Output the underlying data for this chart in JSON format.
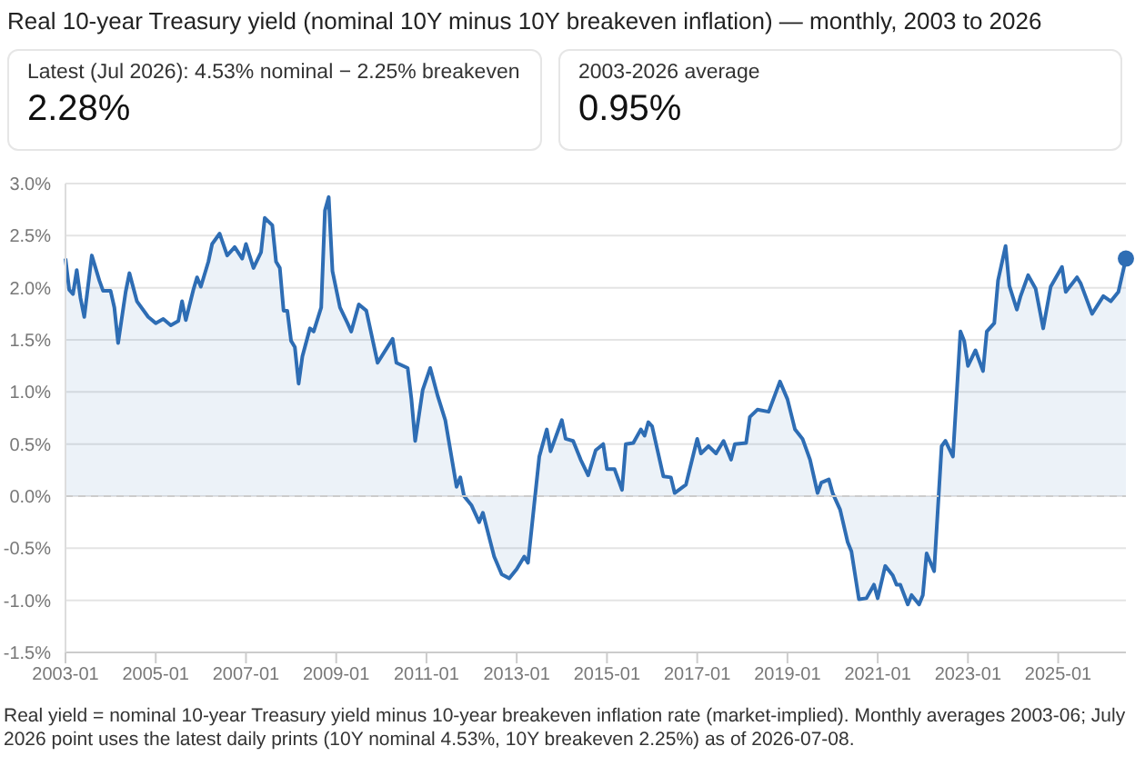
{
  "chart_data": {
    "type": "area",
    "title": "Real 10-year Treasury yield (nominal 10Y minus 10Y breakeven inflation) — monthly, 2003 to 2026",
    "annotations": [
      "Latest (Jul 2026): 4.53% nominal − 2.25% breakeven",
      "2.28%",
      "2003-2026 average",
      "0.95%",
      "Real yield = nominal 10-year Treasury yield minus 10-year breakeven inflation rate (market-implied). Monthly averages 2003-06; July 2026 point uses the latest daily prints (10Y nominal 4.53%, 10Y breakeven 2.25%) as of 2026-07-08."
    ],
    "xlim": [
      "2003-01",
      "2026-07"
    ],
    "xticks": [
      "2003-01",
      "2005-01",
      "2007-01",
      "2009-01",
      "2011-01",
      "2013-01",
      "2015-01",
      "2017-01",
      "2019-01",
      "2021-01",
      "2023-01",
      "2025-01"
    ],
    "ylim": [
      -1.5,
      3.0
    ],
    "yticks": [
      {
        "value": -1.5,
        "label": "-1.5%"
      },
      {
        "value": -1.0,
        "label": "-1.0%"
      },
      {
        "value": -0.5,
        "label": "-0.5%"
      },
      {
        "value": 0,
        "label": "0.0%"
      },
      {
        "value": 0.5,
        "label": "0.5%"
      },
      {
        "value": 1.0,
        "label": "1.0%"
      },
      {
        "value": 1.5,
        "label": "1.5%"
      },
      {
        "value": 2.0,
        "label": "2.0%"
      },
      {
        "value": 2.5,
        "label": "2.5%"
      },
      {
        "value": 3.0,
        "label": "3.0%"
      }
    ],
    "grid": "y",
    "legend": false,
    "marker": "none",
    "ref_lines": [
      {
        "axis": "y",
        "value": 0,
        "color": "#cccccc",
        "line_style": "dashed"
      }
    ],
    "series": [
      {
        "color": "#2e6db4",
        "x": [
          "2003-01",
          "2003-02",
          "2003-03",
          "2003-04",
          "2003-05",
          "2003-06",
          "2003-08",
          "2003-10",
          "2003-11",
          "2004-01",
          "2004-02",
          "2004-03",
          "2004-05",
          "2004-06",
          "2004-08",
          "2004-11",
          "2005-01",
          "2005-03",
          "2005-05",
          "2005-07",
          "2005-08",
          "2005-09",
          "2005-11",
          "2005-12",
          "2006-01",
          "2006-03",
          "2006-04",
          "2006-06",
          "2006-08",
          "2006-10",
          "2006-12",
          "2007-01",
          "2007-03",
          "2007-05",
          "2007-06",
          "2007-08",
          "2007-09",
          "2007-10",
          "2007-11",
          "2007-12",
          "2008-01",
          "2008-02",
          "2008-03",
          "2008-04",
          "2008-06",
          "2008-07",
          "2008-09",
          "2008-10",
          "2008-11",
          "2008-12",
          "2009-02",
          "2009-04",
          "2009-05",
          "2009-07",
          "2009-09",
          "2009-12",
          "2010-04",
          "2010-05",
          "2010-08",
          "2010-09",
          "2010-10",
          "2010-12",
          "2011-02",
          "2011-04",
          "2011-06",
          "2011-09",
          "2011-10",
          "2011-11",
          "2012-01",
          "2012-03",
          "2012-04",
          "2012-07",
          "2012-09",
          "2012-11",
          "2013-01",
          "2013-03",
          "2013-04",
          "2013-07",
          "2013-09",
          "2013-10",
          "2014-01",
          "2014-02",
          "2014-04",
          "2014-06",
          "2014-08",
          "2014-10",
          "2014-12",
          "2015-01",
          "2015-03",
          "2015-05",
          "2015-06",
          "2015-08",
          "2015-10",
          "2015-11",
          "2015-12",
          "2016-01",
          "2016-04",
          "2016-06",
          "2016-07",
          "2016-10",
          "2017-01",
          "2017-02",
          "2017-04",
          "2017-06",
          "2017-08",
          "2017-10",
          "2017-11",
          "2018-02",
          "2018-03",
          "2018-05",
          "2018-08",
          "2018-11",
          "2019-01",
          "2019-03",
          "2019-05",
          "2019-07",
          "2019-09",
          "2019-10",
          "2019-12",
          "2020-01",
          "2020-03",
          "2020-05",
          "2020-06",
          "2020-08",
          "2020-10",
          "2020-12",
          "2021-01",
          "2021-03",
          "2021-05",
          "2021-06",
          "2021-07",
          "2021-09",
          "2021-10",
          "2021-12",
          "2022-01",
          "2022-02",
          "2022-04",
          "2022-06",
          "2022-07",
          "2022-09",
          "2022-11",
          "2022-12",
          "2023-01",
          "2023-03",
          "2023-05",
          "2023-06",
          "2023-08",
          "2023-09",
          "2023-11",
          "2023-12",
          "2024-02",
          "2024-03",
          "2024-05",
          "2024-07",
          "2024-09",
          "2024-11",
          "2025-02",
          "2025-03",
          "2025-06",
          "2025-07",
          "2025-10",
          "2026-01",
          "2026-03",
          "2026-05",
          "2026-07"
        ],
        "values": [
          2.28,
          1.98,
          1.94,
          2.17,
          1.9,
          1.72,
          2.31,
          2.07,
          1.97,
          1.97,
          1.81,
          1.47,
          1.96,
          2.14,
          1.87,
          1.72,
          1.66,
          1.7,
          1.64,
          1.68,
          1.87,
          1.69,
          1.98,
          2.1,
          2.01,
          2.25,
          2.42,
          2.52,
          2.31,
          2.39,
          2.28,
          2.42,
          2.19,
          2.34,
          2.67,
          2.6,
          2.25,
          2.19,
          1.78,
          1.78,
          1.49,
          1.43,
          1.08,
          1.34,
          1.61,
          1.58,
          1.81,
          2.74,
          2.87,
          2.16,
          1.81,
          1.66,
          1.58,
          1.84,
          1.78,
          1.28,
          1.51,
          1.28,
          1.23,
          0.93,
          0.53,
          1.02,
          1.23,
          0.96,
          0.73,
          0.09,
          0.18,
          0.0,
          -0.09,
          -0.25,
          -0.16,
          -0.58,
          -0.75,
          -0.79,
          -0.7,
          -0.58,
          -0.64,
          0.38,
          0.64,
          0.43,
          0.73,
          0.55,
          0.53,
          0.35,
          0.2,
          0.44,
          0.5,
          0.26,
          0.26,
          0.06,
          0.5,
          0.51,
          0.64,
          0.58,
          0.71,
          0.67,
          0.19,
          0.18,
          0.03,
          0.11,
          0.55,
          0.41,
          0.48,
          0.41,
          0.53,
          0.35,
          0.5,
          0.51,
          0.76,
          0.83,
          0.81,
          1.1,
          0.93,
          0.64,
          0.55,
          0.35,
          0.03,
          0.13,
          0.16,
          0.03,
          -0.13,
          -0.44,
          -0.53,
          -0.99,
          -0.98,
          -0.85,
          -0.98,
          -0.67,
          -0.76,
          -0.85,
          -0.85,
          -1.04,
          -0.95,
          -1.04,
          -0.95,
          -0.55,
          -0.72,
          0.48,
          0.53,
          0.38,
          1.58,
          1.49,
          1.25,
          1.4,
          1.2,
          1.58,
          1.66,
          2.07,
          2.4,
          2.02,
          1.79,
          1.92,
          2.12,
          1.99,
          1.61,
          2.01,
          2.2,
          1.96,
          2.1,
          2.04,
          1.75,
          1.92,
          1.87,
          1.96,
          2.28
        ]
      },
      {
        "type": "scatter",
        "color": "#2e6db4",
        "marker": "circle",
        "x": [
          "2026-07"
        ],
        "values": [
          2.28
        ]
      }
    ]
  }
}
